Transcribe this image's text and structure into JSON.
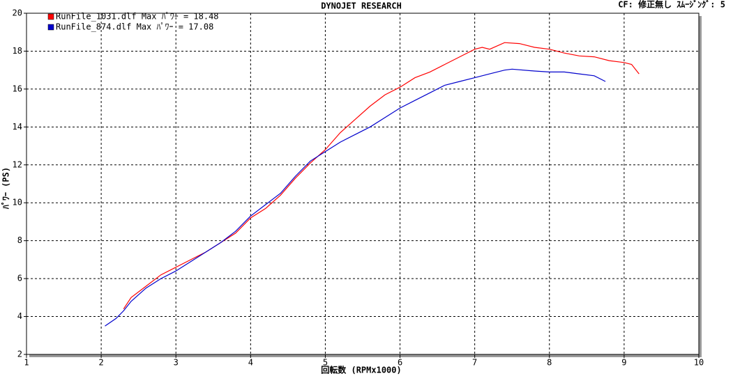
{
  "chart_data": {
    "type": "line",
    "title": "DYNOJET  RESEARCH",
    "subtitle": "CF: 修正無し  ｽﾑｰｼﾞﾝｸﾞ: 5",
    "x_label": "回転数 (RPMx1000)",
    "y_label": "ﾊﾟﾜｰ (PS)",
    "xlim": [
      1,
      10
    ],
    "xticks": [
      1,
      2,
      3,
      4,
      5,
      6,
      7,
      8,
      9,
      10
    ],
    "ylim": [
      2,
      20
    ],
    "yticks": [
      2,
      4,
      6,
      8,
      10,
      12,
      14,
      16,
      18,
      20
    ],
    "grid": true,
    "legend": "top-left",
    "series": [
      {
        "name": "RunFile_1031.dlf Max ﾊﾟﾜｰ = 18.48",
        "color": "#ff0000",
        "x": [
          2.3,
          2.4,
          2.6,
          2.8,
          3.0,
          3.2,
          3.4,
          3.6,
          3.8,
          4.0,
          4.2,
          4.4,
          4.6,
          4.8,
          5.0,
          5.2,
          5.4,
          5.6,
          5.8,
          6.0,
          6.2,
          6.4,
          6.6,
          6.8,
          7.0,
          7.1,
          7.2,
          7.4,
          7.6,
          7.8,
          8.0,
          8.2,
          8.4,
          8.6,
          8.8,
          9.0,
          9.1,
          9.2
        ],
        "values": [
          4.4,
          5.0,
          5.6,
          6.2,
          6.6,
          7.0,
          7.4,
          7.9,
          8.4,
          9.2,
          9.7,
          10.4,
          11.3,
          12.1,
          12.8,
          13.7,
          14.4,
          15.1,
          15.7,
          16.1,
          16.6,
          16.9,
          17.3,
          17.7,
          18.1,
          18.2,
          18.1,
          18.45,
          18.4,
          18.2,
          18.1,
          17.9,
          17.75,
          17.7,
          17.5,
          17.4,
          17.3,
          16.8
        ]
      },
      {
        "name": "RunFile_874.dlf Max ﾊﾟﾜｰ = 17.08",
        "color": "#0000cc",
        "x": [
          2.05,
          2.2,
          2.3,
          2.4,
          2.6,
          2.8,
          3.0,
          3.2,
          3.4,
          3.6,
          3.8,
          4.0,
          4.2,
          4.4,
          4.6,
          4.8,
          5.0,
          5.2,
          5.4,
          5.6,
          5.8,
          6.0,
          6.2,
          6.4,
          6.6,
          6.8,
          7.0,
          7.2,
          7.4,
          7.5,
          7.8,
          8.0,
          8.2,
          8.4,
          8.6,
          8.75
        ],
        "values": [
          3.5,
          3.9,
          4.3,
          4.8,
          5.5,
          6.0,
          6.4,
          6.9,
          7.4,
          7.9,
          8.5,
          9.3,
          9.9,
          10.5,
          11.4,
          12.2,
          12.7,
          13.2,
          13.6,
          14.0,
          14.5,
          15.0,
          15.4,
          15.8,
          16.2,
          16.4,
          16.6,
          16.8,
          17.0,
          17.05,
          16.95,
          16.9,
          16.9,
          16.8,
          16.7,
          16.4
        ]
      }
    ]
  }
}
